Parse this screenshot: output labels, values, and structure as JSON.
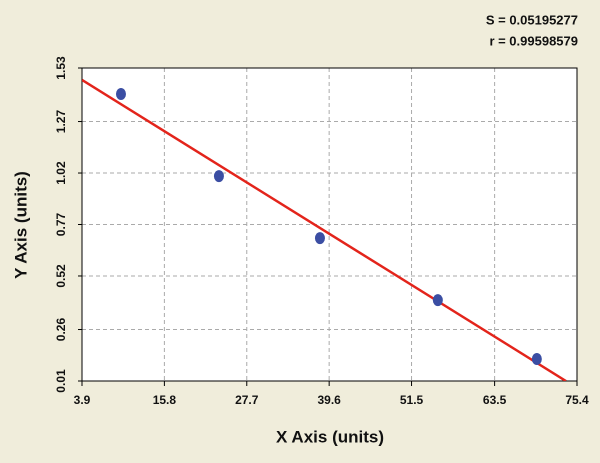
{
  "chart_data": {
    "type": "scatter",
    "annotations": [
      "S = 0.05195277",
      "r = 0.99598579"
    ],
    "x_label": "X Axis (units)",
    "y_label": "Y Axis (units)",
    "series": [
      {
        "x": [
          9.53,
          23.68,
          38.27,
          55.3,
          69.6
        ],
        "values": [
          1.404,
          1.005,
          0.704,
          0.403,
          0.117
        ],
        "color": "#3b4ea3"
      }
    ],
    "fit_line": {
      "x": [
        3.9,
        73.8
      ],
      "values": [
        1.472,
        0.01
      ],
      "color": "#e3241b"
    },
    "xlim": [
      3.9,
      75.4
    ],
    "xticks": [
      3.9,
      15.8,
      27.7,
      39.6,
      51.5,
      63.5,
      75.4
    ],
    "ylim": [
      0.01,
      1.53
    ],
    "yticks": [
      0.01,
      0.26,
      0.52,
      0.77,
      1.02,
      1.27,
      1.53
    ],
    "grid": true
  }
}
